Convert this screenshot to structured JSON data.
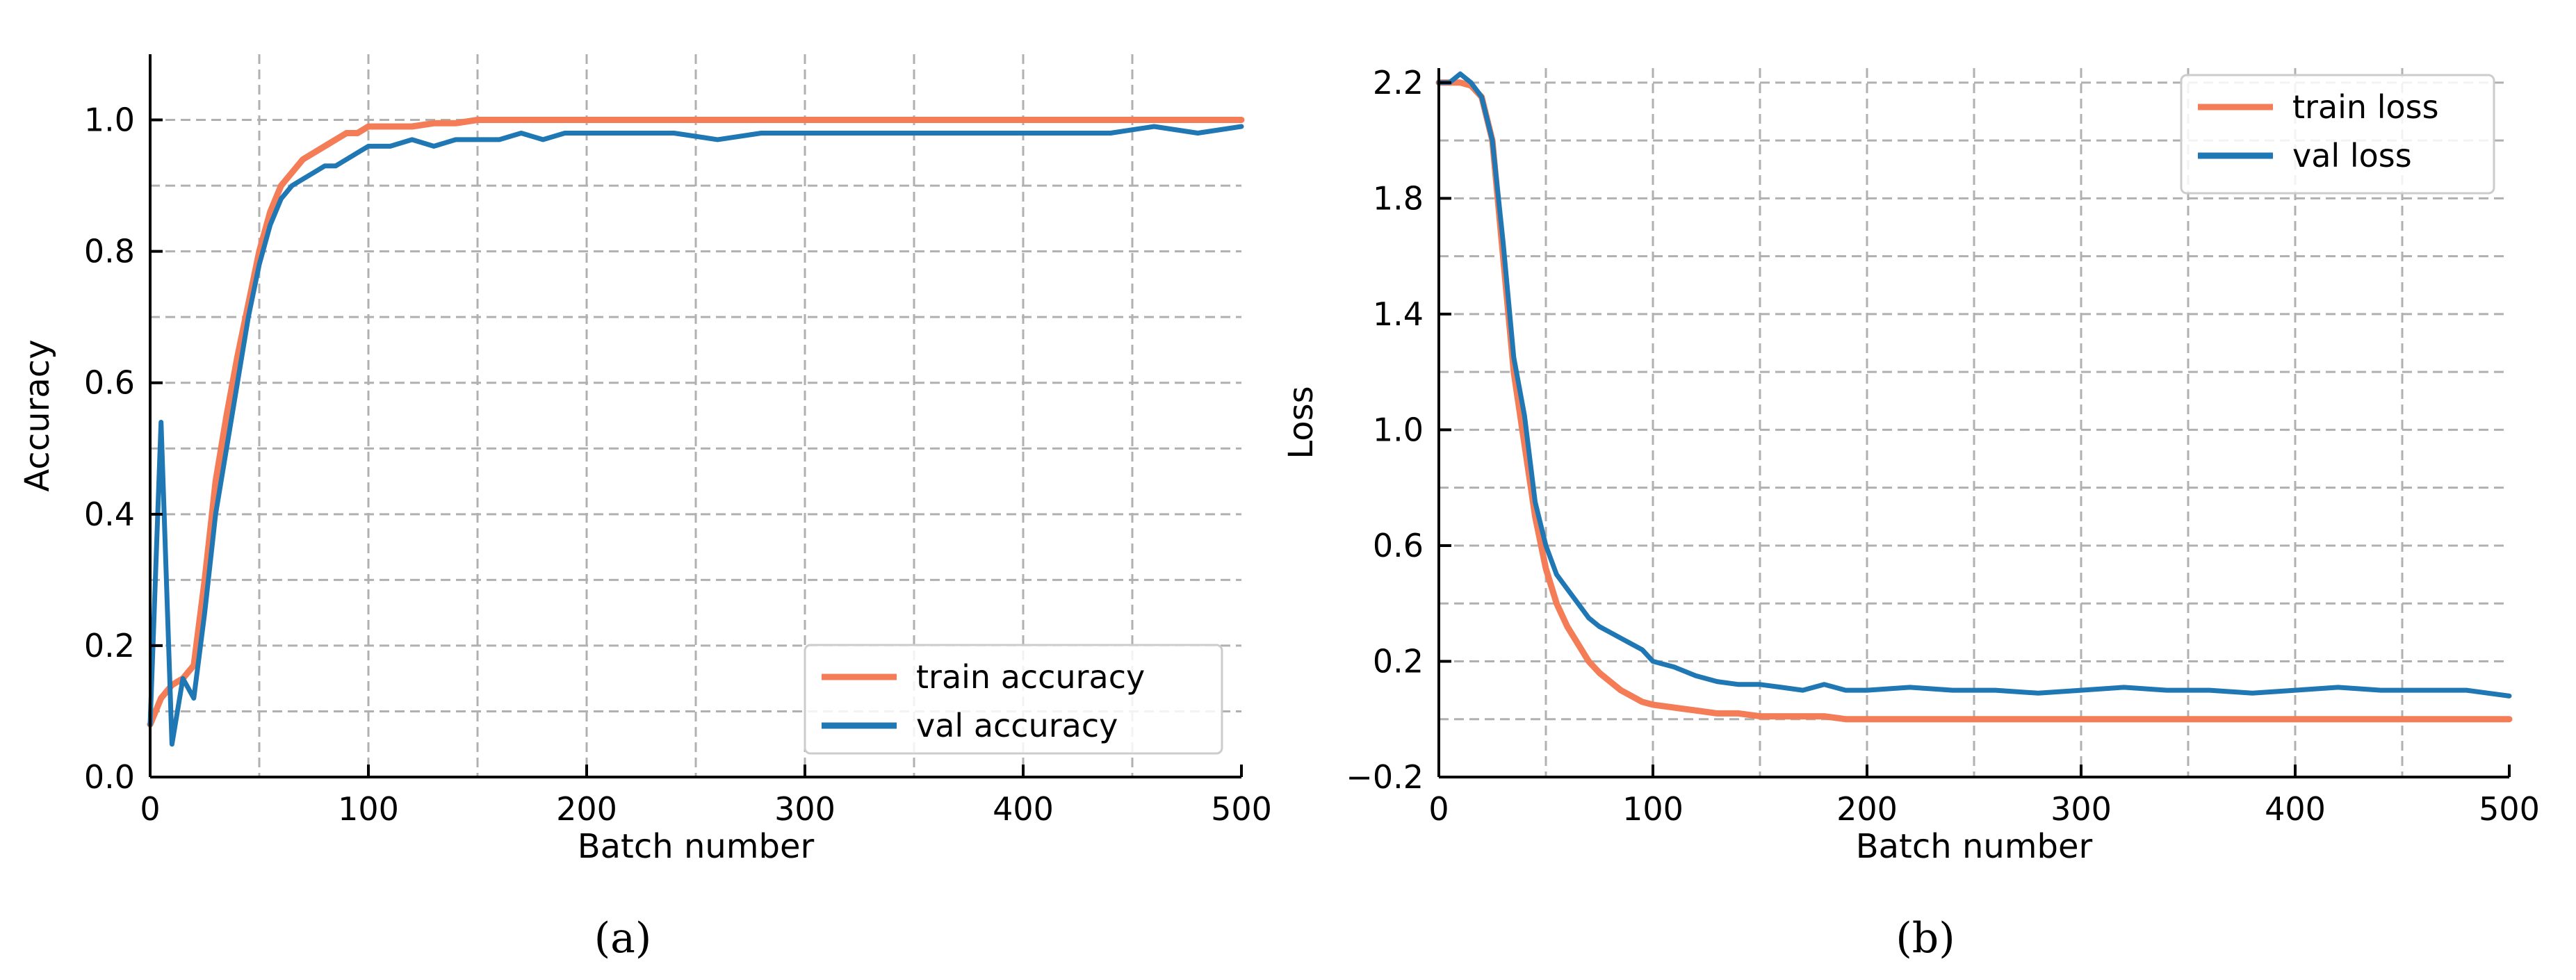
{
  "chart_data": [
    {
      "type": "line",
      "panel_label": "(a)",
      "title": "",
      "xlabel": "Batch number",
      "ylabel": "Accuracy",
      "xlim": [
        0,
        500
      ],
      "ylim": [
        0.0,
        1.1
      ],
      "xticks": [
        0,
        100,
        200,
        300,
        400,
        500
      ],
      "yticks": [
        0.0,
        0.2,
        0.4,
        0.6,
        0.8,
        1.0
      ],
      "xtick_labels": [
        "0",
        "100",
        "200",
        "300",
        "400",
        "500"
      ],
      "ytick_labels": [
        "0.0",
        "0.2",
        "0.4",
        "0.6",
        "0.8",
        "1.0"
      ],
      "grid": true,
      "legend_position": "lower-right",
      "x": [
        0,
        5,
        10,
        15,
        20,
        25,
        30,
        35,
        40,
        45,
        50,
        55,
        60,
        65,
        70,
        75,
        80,
        85,
        90,
        95,
        100,
        110,
        120,
        130,
        140,
        150,
        160,
        170,
        180,
        190,
        200,
        220,
        240,
        260,
        280,
        300,
        320,
        340,
        360,
        380,
        400,
        420,
        440,
        460,
        480,
        500
      ],
      "series": [
        {
          "name": "train accuracy",
          "color": "#f47c56",
          "values": [
            0.08,
            0.12,
            0.14,
            0.15,
            0.17,
            0.3,
            0.45,
            0.55,
            0.64,
            0.72,
            0.8,
            0.86,
            0.9,
            0.92,
            0.94,
            0.95,
            0.96,
            0.97,
            0.98,
            0.98,
            0.99,
            0.99,
            0.99,
            0.995,
            0.995,
            1.0,
            1.0,
            1.0,
            1.0,
            1.0,
            1.0,
            1.0,
            1.0,
            1.0,
            1.0,
            1.0,
            1.0,
            1.0,
            1.0,
            1.0,
            1.0,
            1.0,
            1.0,
            1.0,
            1.0,
            1.0
          ]
        },
        {
          "name": "val accuracy",
          "color": "#1f77b4",
          "values": [
            0.08,
            0.54,
            0.05,
            0.15,
            0.12,
            0.25,
            0.4,
            0.5,
            0.6,
            0.7,
            0.78,
            0.84,
            0.88,
            0.9,
            0.91,
            0.92,
            0.93,
            0.93,
            0.94,
            0.95,
            0.96,
            0.96,
            0.97,
            0.96,
            0.97,
            0.97,
            0.97,
            0.98,
            0.97,
            0.98,
            0.98,
            0.98,
            0.98,
            0.97,
            0.98,
            0.98,
            0.98,
            0.98,
            0.98,
            0.98,
            0.98,
            0.98,
            0.98,
            0.99,
            0.98,
            0.99
          ]
        }
      ]
    },
    {
      "type": "line",
      "panel_label": "(b)",
      "title": "",
      "xlabel": "Batch number",
      "ylabel": "Loss",
      "xlim": [
        0,
        500
      ],
      "ylim": [
        -0.2,
        2.25
      ],
      "xticks": [
        0,
        100,
        200,
        300,
        400,
        500
      ],
      "yticks": [
        -0.2,
        0.2,
        0.6,
        1.0,
        1.4,
        1.8,
        2.2
      ],
      "xtick_labels": [
        "0",
        "100",
        "200",
        "300",
        "400",
        "500"
      ],
      "ytick_labels": [
        "−0.2",
        "0.2",
        "0.6",
        "1.0",
        "1.4",
        "1.8",
        "2.2"
      ],
      "grid": true,
      "legend_position": "top-right",
      "x": [
        0,
        5,
        10,
        15,
        20,
        25,
        30,
        35,
        40,
        45,
        50,
        55,
        60,
        65,
        70,
        75,
        80,
        85,
        90,
        95,
        100,
        110,
        120,
        130,
        140,
        150,
        160,
        170,
        180,
        190,
        200,
        220,
        240,
        260,
        280,
        300,
        320,
        340,
        360,
        380,
        400,
        420,
        440,
        460,
        480,
        500
      ],
      "series": [
        {
          "name": "train loss",
          "color": "#f47c56",
          "values": [
            2.2,
            2.2,
            2.2,
            2.19,
            2.15,
            2.0,
            1.6,
            1.2,
            0.95,
            0.7,
            0.52,
            0.4,
            0.32,
            0.26,
            0.2,
            0.16,
            0.13,
            0.1,
            0.08,
            0.06,
            0.05,
            0.04,
            0.03,
            0.02,
            0.02,
            0.01,
            0.01,
            0.01,
            0.01,
            0.0,
            0.0,
            0.0,
            0.0,
            0.0,
            0.0,
            0.0,
            0.0,
            0.0,
            0.0,
            0.0,
            0.0,
            0.0,
            0.0,
            0.0,
            0.0,
            0.0
          ]
        },
        {
          "name": "val loss",
          "color": "#1f77b4",
          "values": [
            2.2,
            2.2,
            2.23,
            2.2,
            2.15,
            2.0,
            1.65,
            1.25,
            1.05,
            0.75,
            0.6,
            0.5,
            0.45,
            0.4,
            0.35,
            0.32,
            0.3,
            0.28,
            0.26,
            0.24,
            0.2,
            0.18,
            0.15,
            0.13,
            0.12,
            0.12,
            0.11,
            0.1,
            0.12,
            0.1,
            0.1,
            0.11,
            0.1,
            0.1,
            0.09,
            0.1,
            0.11,
            0.1,
            0.1,
            0.09,
            0.1,
            0.11,
            0.1,
            0.1,
            0.1,
            0.08
          ]
        }
      ]
    }
  ]
}
